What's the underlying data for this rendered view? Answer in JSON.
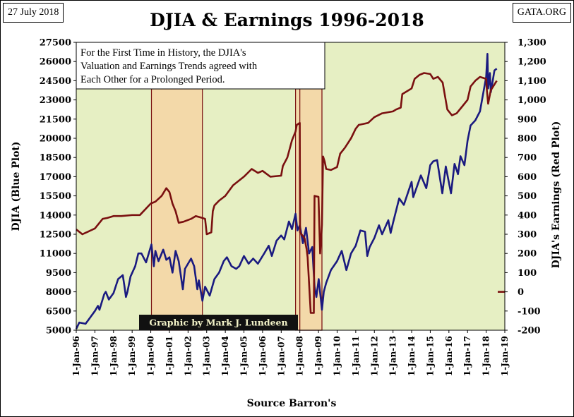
{
  "header": {
    "date_label": "27 July 2018",
    "source_label": "GATA.ORG"
  },
  "chart_data": {
    "type": "line",
    "title": "DJIA & Earnings 1996-2018",
    "xlabel": "Source Barron's",
    "ylabel_left": "DJIA (Blue Plot)",
    "ylabel_right": "DJIA's Earnings (Red Plot)",
    "x_range": [
      "1996-01-01",
      "2019-01-01"
    ],
    "x_ticks": [
      "1-Jan-96",
      "1-Jan-97",
      "1-Jan-98",
      "1-Jan-99",
      "1-Jan-00",
      "1-Jan-01",
      "1-Jan-02",
      "1-Jan-03",
      "1-Jan-04",
      "1-Jan-05",
      "1-Jan-06",
      "1-Jan-07",
      "1-Jan-08",
      "1-Jan-09",
      "1-Jan-10",
      "1-Jan-11",
      "1-Jan-12",
      "1-Jan-13",
      "1-Jan-14",
      "1-Jan-15",
      "1-Jan-16",
      "1-Jan-17",
      "1-Jan-18",
      "1-Jan-19"
    ],
    "y_left_range": [
      5000,
      27500
    ],
    "y_left_ticks": [
      "5000",
      "6500",
      "8000",
      "9500",
      "11000",
      "12500",
      "14000",
      "15500",
      "17000",
      "18500",
      "20000",
      "21500",
      "23000",
      "24500",
      "26000",
      "27500"
    ],
    "y_right_range": [
      -200,
      1300
    ],
    "y_right_ticks": [
      "-200",
      "-100",
      "0",
      "100",
      "200",
      "300",
      "400",
      "500",
      "600",
      "700",
      "800",
      "900",
      "1,000",
      "1,100",
      "1,200",
      "1,300"
    ],
    "grid": false,
    "background_color": "#e6efc3",
    "shaded_periods": [
      {
        "start": "2000-01-14",
        "end": "2002-10-09"
      },
      {
        "start": "2007-10-09",
        "end": "2009-03-09"
      },
      {
        "start": "2008-01-01",
        "end": "2009-03-09"
      }
    ],
    "shade_color": "#f3d9a9",
    "series": [
      {
        "axis": "left",
        "color": "#1a1a80",
        "points": [
          [
            "1996-01-01",
            5100
          ],
          [
            "1996-03-01",
            5600
          ],
          [
            "1996-07-01",
            5500
          ],
          [
            "1996-10-01",
            6000
          ],
          [
            "1997-01-01",
            6500
          ],
          [
            "1997-03-01",
            6900
          ],
          [
            "1997-04-01",
            6600
          ],
          [
            "1997-07-01",
            7800
          ],
          [
            "1997-08-01",
            8000
          ],
          [
            "1997-10-01",
            7400
          ],
          [
            "1998-01-01",
            7900
          ],
          [
            "1998-04-01",
            9000
          ],
          [
            "1998-07-01",
            9300
          ],
          [
            "1998-08-01",
            8500
          ],
          [
            "1998-09-01",
            7600
          ],
          [
            "1998-10-01",
            8000
          ],
          [
            "1998-12-01",
            9200
          ],
          [
            "1999-03-01",
            10000
          ],
          [
            "1999-05-01",
            11000
          ],
          [
            "1999-07-01",
            11000
          ],
          [
            "1999-10-01",
            10300
          ],
          [
            "2000-01-14",
            11700
          ],
          [
            "2000-03-01",
            10000
          ],
          [
            "2000-04-01",
            11200
          ],
          [
            "2000-06-01",
            10400
          ],
          [
            "2000-09-01",
            11300
          ],
          [
            "2000-11-01",
            10500
          ],
          [
            "2001-01-01",
            10700
          ],
          [
            "2001-03-01",
            9500
          ],
          [
            "2001-05-01",
            11200
          ],
          [
            "2001-07-01",
            10400
          ],
          [
            "2001-09-21",
            8200
          ],
          [
            "2001-11-01",
            9800
          ],
          [
            "2002-03-01",
            10600
          ],
          [
            "2002-05-01",
            10000
          ],
          [
            "2002-07-01",
            8200
          ],
          [
            "2002-08-01",
            8900
          ],
          [
            "2002-10-09",
            7300
          ],
          [
            "2002-12-01",
            8400
          ],
          [
            "2003-03-01",
            7700
          ],
          [
            "2003-06-01",
            9000
          ],
          [
            "2003-09-01",
            9500
          ],
          [
            "2003-12-01",
            10400
          ],
          [
            "2004-02-01",
            10700
          ],
          [
            "2004-05-01",
            10000
          ],
          [
            "2004-08-01",
            9800
          ],
          [
            "2004-10-01",
            10000
          ],
          [
            "2004-12-31",
            10800
          ],
          [
            "2005-04-01",
            10200
          ],
          [
            "2005-07-01",
            10600
          ],
          [
            "2005-10-01",
            10200
          ],
          [
            "2006-02-01",
            11000
          ],
          [
            "2006-05-01",
            11600
          ],
          [
            "2006-07-01",
            10800
          ],
          [
            "2006-10-01",
            12000
          ],
          [
            "2006-12-31",
            12400
          ],
          [
            "2007-03-01",
            12100
          ],
          [
            "2007-06-01",
            13500
          ],
          [
            "2007-08-01",
            12900
          ],
          [
            "2007-10-09",
            14100
          ],
          [
            "2007-11-15",
            12800
          ],
          [
            "2008-01-01",
            13200
          ],
          [
            "2008-03-01",
            11800
          ],
          [
            "2008-05-01",
            13000
          ],
          [
            "2008-07-01",
            11000
          ],
          [
            "2008-09-01",
            11500
          ],
          [
            "2008-10-15",
            8400
          ],
          [
            "2008-11-20",
            7600
          ],
          [
            "2009-01-05",
            9000
          ],
          [
            "2009-03-09",
            6600
          ],
          [
            "2009-04-15",
            8000
          ],
          [
            "2009-06-01",
            8700
          ],
          [
            "2009-09-01",
            9700
          ],
          [
            "2009-12-31",
            10400
          ],
          [
            "2010-04-01",
            11200
          ],
          [
            "2010-07-01",
            9700
          ],
          [
            "2010-10-01",
            11000
          ],
          [
            "2010-12-31",
            11600
          ],
          [
            "2011-04-01",
            12800
          ],
          [
            "2011-07-01",
            12700
          ],
          [
            "2011-08-15",
            10800
          ],
          [
            "2011-10-01",
            11500
          ],
          [
            "2011-12-31",
            12200
          ],
          [
            "2012-04-01",
            13200
          ],
          [
            "2012-06-01",
            12500
          ],
          [
            "2012-10-01",
            13600
          ],
          [
            "2012-11-15",
            12600
          ],
          [
            "2013-01-01",
            13400
          ],
          [
            "2013-05-01",
            15300
          ],
          [
            "2013-08-01",
            14800
          ],
          [
            "2013-12-31",
            16600
          ],
          [
            "2014-02-01",
            15400
          ],
          [
            "2014-07-01",
            17100
          ],
          [
            "2014-10-15",
            16100
          ],
          [
            "2014-12-31",
            17900
          ],
          [
            "2015-03-01",
            18200
          ],
          [
            "2015-05-15",
            18300
          ],
          [
            "2015-08-25",
            15700
          ],
          [
            "2015-11-01",
            17800
          ],
          [
            "2016-02-11",
            15700
          ],
          [
            "2016-04-20",
            18000
          ],
          [
            "2016-06-27",
            17200
          ],
          [
            "2016-08-15",
            18600
          ],
          [
            "2016-11-01",
            17900
          ],
          [
            "2016-12-31",
            19800
          ],
          [
            "2017-03-01",
            21000
          ],
          [
            "2017-06-01",
            21400
          ],
          [
            "2017-09-01",
            22100
          ],
          [
            "2017-12-31",
            24800
          ],
          [
            "2018-01-26",
            26600
          ],
          [
            "2018-02-08",
            23900
          ],
          [
            "2018-03-15",
            25100
          ],
          [
            "2018-04-02",
            23600
          ],
          [
            "2018-06-11",
            25300
          ],
          [
            "2018-07-27",
            25450
          ]
        ]
      },
      {
        "axis": "right",
        "color": "#7a1010",
        "points": [
          [
            "1996-01-01",
            325
          ],
          [
            "1996-05-01",
            300
          ],
          [
            "1996-09-01",
            315
          ],
          [
            "1997-01-01",
            330
          ],
          [
            "1997-06-01",
            380
          ],
          [
            "1997-09-01",
            385
          ],
          [
            "1998-01-01",
            395
          ],
          [
            "1998-06-01",
            395
          ],
          [
            "1998-12-31",
            400
          ],
          [
            "1999-06-01",
            400
          ],
          [
            "1999-12-31",
            460
          ],
          [
            "2000-04-01",
            470
          ],
          [
            "2000-08-01",
            500
          ],
          [
            "2000-11-01",
            540
          ],
          [
            "2001-01-01",
            520
          ],
          [
            "2001-03-01",
            460
          ],
          [
            "2001-05-01",
            420
          ],
          [
            "2001-07-01",
            360
          ],
          [
            "2001-10-01",
            365
          ],
          [
            "2002-03-01",
            380
          ],
          [
            "2002-06-01",
            395
          ],
          [
            "2002-10-09",
            385
          ],
          [
            "2002-12-01",
            380
          ],
          [
            "2003-01-01",
            300
          ],
          [
            "2003-04-01",
            310
          ],
          [
            "2003-05-01",
            420
          ],
          [
            "2003-06-01",
            450
          ],
          [
            "2003-09-01",
            475
          ],
          [
            "2003-12-31",
            500
          ],
          [
            "2004-06-01",
            555
          ],
          [
            "2004-12-31",
            600
          ],
          [
            "2005-06-01",
            640
          ],
          [
            "2005-10-01",
            620
          ],
          [
            "2006-01-01",
            630
          ],
          [
            "2006-06-01",
            600
          ],
          [
            "2006-12-31",
            605
          ],
          [
            "2007-02-01",
            655
          ],
          [
            "2007-05-01",
            700
          ],
          [
            "2007-08-01",
            790
          ],
          [
            "2007-10-09",
            835
          ],
          [
            "2007-11-01",
            870
          ],
          [
            "2007-12-31",
            880
          ],
          [
            "2008-01-05",
            310
          ],
          [
            "2008-02-01",
            300
          ],
          [
            "2008-04-01",
            280
          ],
          [
            "2008-05-15",
            220
          ],
          [
            "2008-06-01",
            180
          ],
          [
            "2008-08-01",
            -110
          ],
          [
            "2008-10-01",
            -110
          ],
          [
            "2008-10-15",
            500
          ],
          [
            "2009-01-01",
            495
          ],
          [
            "2009-02-01",
            200
          ],
          [
            "2009-02-15",
            250
          ],
          [
            "2009-03-09",
            350
          ],
          [
            "2009-04-01",
            705
          ],
          [
            "2009-05-01",
            680
          ],
          [
            "2009-06-01",
            640
          ],
          [
            "2009-09-01",
            635
          ],
          [
            "2009-12-31",
            650
          ],
          [
            "2010-03-01",
            720
          ],
          [
            "2010-06-01",
            750
          ],
          [
            "2010-10-01",
            800
          ],
          [
            "2010-12-31",
            850
          ],
          [
            "2011-03-01",
            870
          ],
          [
            "2011-06-01",
            875
          ],
          [
            "2011-09-01",
            880
          ],
          [
            "2011-12-31",
            910
          ],
          [
            "2012-06-01",
            930
          ],
          [
            "2012-12-31",
            940
          ],
          [
            "2013-03-01",
            950
          ],
          [
            "2013-06-01",
            960
          ],
          [
            "2013-07-01",
            1030
          ],
          [
            "2013-12-31",
            1060
          ],
          [
            "2014-03-01",
            1110
          ],
          [
            "2014-06-01",
            1130
          ],
          [
            "2014-09-01",
            1140
          ],
          [
            "2014-12-31",
            1135
          ],
          [
            "2015-03-01",
            1110
          ],
          [
            "2015-06-01",
            1120
          ],
          [
            "2015-09-01",
            1090
          ],
          [
            "2015-12-01",
            950
          ],
          [
            "2016-03-01",
            920
          ],
          [
            "2016-06-01",
            930
          ],
          [
            "2016-09-01",
            960
          ],
          [
            "2016-12-31",
            1000
          ],
          [
            "2017-03-01",
            1070
          ],
          [
            "2017-06-01",
            1100
          ],
          [
            "2017-09-01",
            1120
          ],
          [
            "2017-12-31",
            1110
          ],
          [
            "2018-01-15",
            1050
          ],
          [
            "2018-02-08",
            980
          ],
          [
            "2018-04-01",
            1050
          ],
          [
            "2018-07-27",
            1100
          ]
        ]
      },
      {
        "axis": "right",
        "color": "#7a1010",
        "points": [
          [
            "2018-08-15",
            0
          ],
          [
            "2018-12-31",
            0
          ]
        ]
      }
    ],
    "annotations": [
      {
        "lines": [
          "For the First Time in History, the DJIA's",
          "Valuation and Earnings Trends agreed with",
          "Each Other for a Prolonged Period."
        ]
      },
      {
        "text": "Graphic by Mark J. Lundeen"
      }
    ]
  }
}
